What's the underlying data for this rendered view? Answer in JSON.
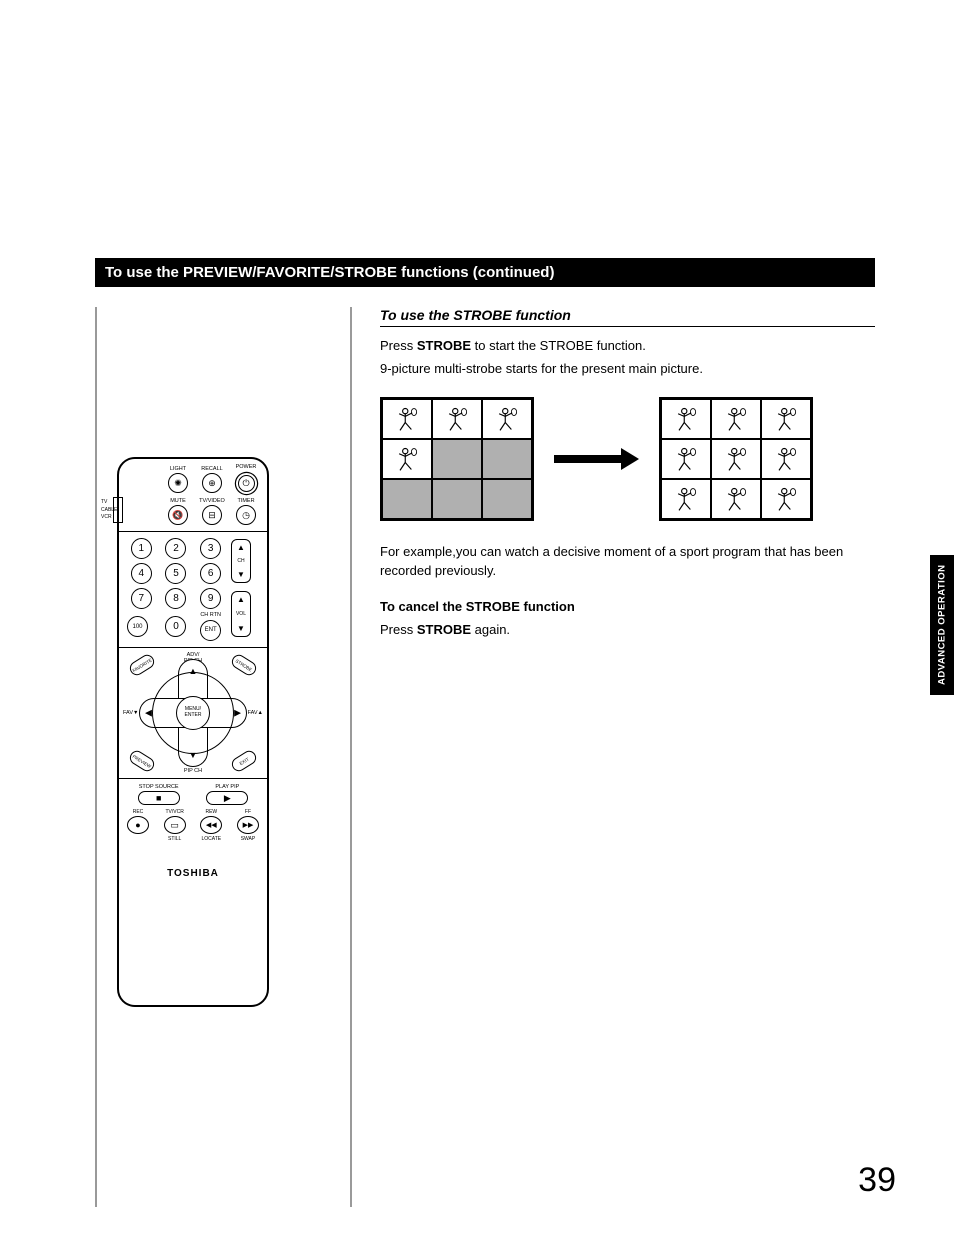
{
  "section_header": "To use the PREVIEW/FAVORITE/STROBE functions (continued)",
  "sub_heading": "To use the STROBE function",
  "intro_line1_pre": "Press ",
  "intro_line1_bold": "STROBE",
  "intro_line1_post": " to start the STROBE function.",
  "intro_line2": "9-picture multi-strobe starts for the present main picture.",
  "example_text": "For example,you can watch a decisive moment of a sport program that has been recorded previously.",
  "cancel_heading": "To cancel the STROBE function",
  "cancel_line_pre": "Press ",
  "cancel_line_bold": "STROBE",
  "cancel_line_post": " again.",
  "side_tab": "ADVANCED OPERATION",
  "page_number": "39",
  "grid_before_filled": [
    true,
    true,
    true,
    true,
    false,
    false,
    false,
    false,
    false
  ],
  "grid_after_filled": [
    true,
    true,
    true,
    true,
    true,
    true,
    true,
    true,
    true
  ],
  "colors": {
    "header_bg": "#000000",
    "header_fg": "#ffffff",
    "cell_empty": "#b0b0b0",
    "cell_filled": "#ffffff",
    "divider": "#9a9a9a",
    "text": "#000000"
  },
  "remote": {
    "top_row": [
      {
        "label": "LIGHT",
        "glyph": "✺"
      },
      {
        "label": "RECALL",
        "glyph": "⊕"
      },
      {
        "label": "POWER",
        "glyph": "⏻",
        "double": true
      }
    ],
    "second_row": [
      {
        "label": "MUTE",
        "glyph": "🔇"
      },
      {
        "label": "TV/VIDEO",
        "glyph": "⊟"
      },
      {
        "label": "TIMER",
        "glyph": "◷"
      }
    ],
    "mode_labels": [
      "TV",
      "CABLE",
      "VCR"
    ],
    "numpad": [
      "1",
      "2",
      "3",
      "4",
      "5",
      "6",
      "7",
      "8",
      "9",
      "100",
      "0",
      "ENT"
    ],
    "ch_label": "CH",
    "vol_label": "VOL",
    "chrtn_label": "CH RTN",
    "dpad": {
      "corners": [
        "FAVORITE",
        "STROBE",
        "PREVIEW",
        "EXIT"
      ],
      "top": "ADV/\nPIP CH",
      "bottom": "ADV/\nPIP CH",
      "left": "FAV▼",
      "right": "FAV▲",
      "center": "MENU/\nENTER"
    },
    "pills": {
      "stop_source": "STOP SOURCE",
      "play_pip": "PLAY PIP",
      "stop_glyph": "■",
      "play_glyph": "▶"
    },
    "transport": [
      {
        "top": "REC",
        "glyph": "●",
        "below": ""
      },
      {
        "top": "TV/VCR",
        "glyph": "▭",
        "below": "STILL"
      },
      {
        "top": "REW",
        "glyph": "◀◀",
        "below": "LOCATE"
      },
      {
        "top": "FF",
        "glyph": "▶▶",
        "below": "SWAP"
      }
    ],
    "brand": "TOSHIBA"
  }
}
